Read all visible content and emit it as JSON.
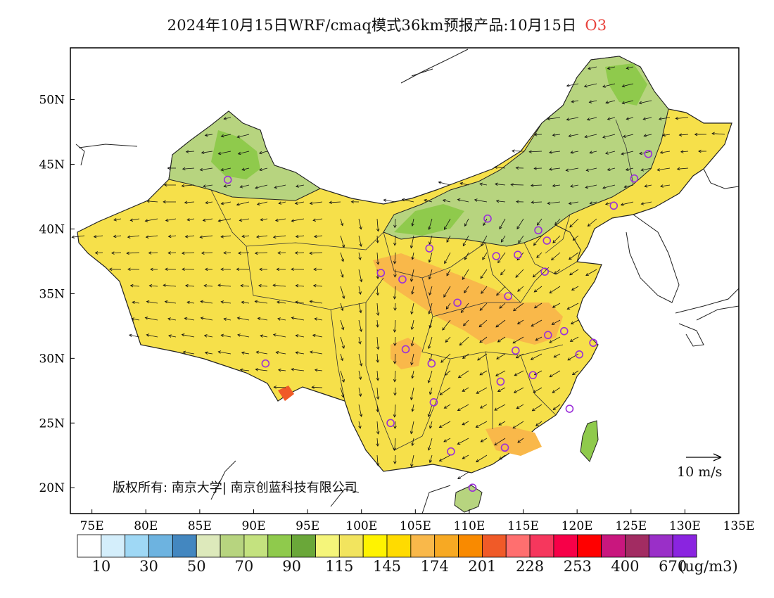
{
  "title": {
    "main": "2024年10月15日WRF/cmaq模式36km预报产品:10月15日",
    "species": "O3"
  },
  "axes": {
    "x_ticks": [
      "75E",
      "80E",
      "85E",
      "90E",
      "95E",
      "100E",
      "105E",
      "110E",
      "115E",
      "120E",
      "125E",
      "130E",
      "135E"
    ],
    "y_ticks": [
      "50N",
      "45N",
      "40N",
      "35N",
      "30N",
      "25N",
      "20N"
    ],
    "lon_range": [
      73,
      135
    ],
    "lat_range": [
      18,
      54
    ]
  },
  "colorbar": {
    "colors": [
      "#ffffff",
      "#d4eefb",
      "#9fd8f5",
      "#6db3e0",
      "#4387c0",
      "#dde9bb",
      "#b7d47f",
      "#c4e27f",
      "#8fca4c",
      "#6aa739",
      "#f5f57a",
      "#f2e45e",
      "#fff300",
      "#ffdb00",
      "#f9b84a",
      "#f7a923",
      "#f98a00",
      "#f05a28",
      "#ff6f6f",
      "#f6375d",
      "#f70048",
      "#ff0000",
      "#c9177e",
      "#a22c62",
      "#9a2fc8",
      "#8a24e0"
    ],
    "labels": [
      "10",
      "30",
      "50",
      "70",
      "90",
      "115",
      "145",
      "174",
      "201",
      "228",
      "253",
      "400",
      "670"
    ],
    "unit": "(ug/m3)"
  },
  "copyright": "版权所有: 南京大学| 南京创蓝科技有限公司",
  "wind_reference": "10 m/s",
  "colors": {
    "title_highlight": "#e8403a",
    "marker": "#9b30d9"
  }
}
